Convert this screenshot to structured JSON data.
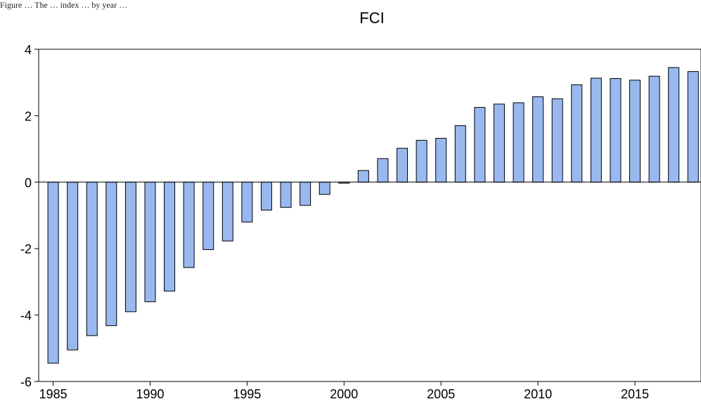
{
  "caption": "Figure … The … index … by year …",
  "chart_data": {
    "type": "bar",
    "title": "FCI",
    "xlabel": "",
    "ylabel": "",
    "ylim": [
      -6,
      4
    ],
    "yticks": [
      "-6",
      "-4",
      "-2",
      "0",
      "2",
      "4"
    ],
    "xticks": [
      "1985",
      "1990",
      "1995",
      "2000",
      "2005",
      "2010",
      "2015"
    ],
    "grid": false,
    "bar_color": "#98b8f0",
    "categories": [
      1985,
      1986,
      1987,
      1988,
      1989,
      1990,
      1991,
      1992,
      1993,
      1994,
      1995,
      1996,
      1997,
      1998,
      1999,
      2000,
      2001,
      2002,
      2003,
      2004,
      2005,
      2006,
      2007,
      2008,
      2009,
      2010,
      2011,
      2012,
      2013,
      2014,
      2015,
      2016,
      2017,
      2018
    ],
    "values": [
      -5.45,
      -5.05,
      -4.62,
      -4.32,
      -3.9,
      -3.6,
      -3.28,
      -2.57,
      -2.03,
      -1.77,
      -1.2,
      -0.84,
      -0.76,
      -0.7,
      -0.37,
      -0.03,
      0.35,
      0.71,
      1.02,
      1.26,
      1.32,
      1.7,
      2.25,
      2.35,
      2.39,
      2.57,
      2.51,
      2.93,
      3.13,
      3.12,
      3.07,
      3.19,
      3.45,
      3.33
    ]
  }
}
